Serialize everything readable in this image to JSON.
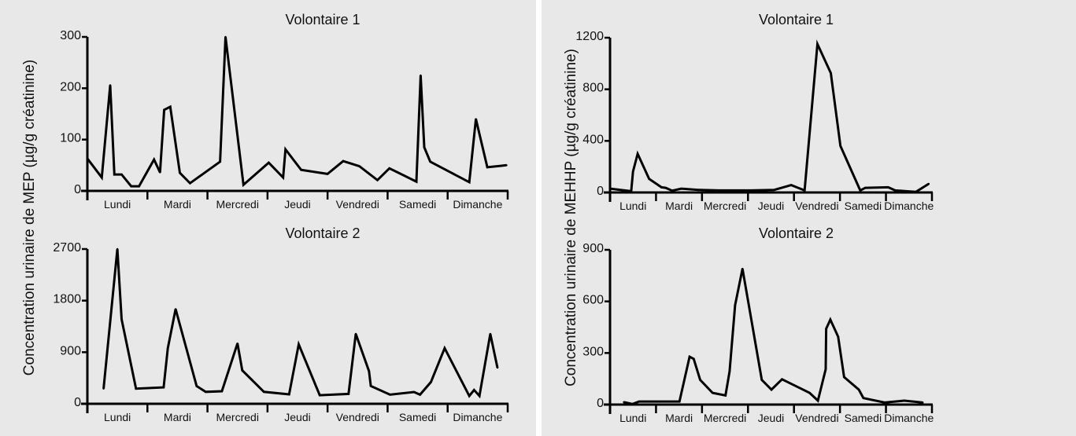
{
  "chart_data": [
    {
      "type": "line",
      "panel": "left",
      "title": "Volontaire 1",
      "ylabel": "Concentration urinaire de MEP (µg/g créatinine)",
      "categories": [
        "Lundi",
        "Mardi",
        "Mercredi",
        "Jeudi",
        "Vendredi",
        "Samedi",
        "Dimanche"
      ],
      "yticks": [
        0,
        100,
        200,
        300
      ],
      "ylim": [
        0,
        300
      ],
      "xlim": [
        0,
        7
      ],
      "x": [
        0,
        0.24,
        0.38,
        0.45,
        0.57,
        0.73,
        0.86,
        1.11,
        1.21,
        1.28,
        1.38,
        1.54,
        1.71,
        2.21,
        2.3,
        2.6,
        3.02,
        3.26,
        3.3,
        3.56,
        4.0,
        4.26,
        4.53,
        4.83,
        5.03,
        5.48,
        5.55,
        5.61,
        5.71,
        6.36,
        6.47,
        6.66,
        6.98
      ],
      "y": [
        63,
        26,
        206,
        32,
        32,
        9,
        9,
        61,
        36,
        158,
        164,
        35,
        15,
        57,
        300,
        12,
        55,
        26,
        81,
        41,
        33,
        58,
        48,
        21,
        44,
        18,
        225,
        85,
        57,
        17,
        140,
        46,
        50
      ]
    },
    {
      "type": "line",
      "panel": "left",
      "title": "Volontaire 2",
      "ylabel": "Concentration urinaire de MEP (µg/g créatinine)",
      "categories": [
        "Lundi",
        "Mardi",
        "Mercredi",
        "Jeudi",
        "Vendredi",
        "Samedi",
        "Dimanche"
      ],
      "yticks": [
        0,
        900,
        1800,
        2700
      ],
      "ylim": [
        0,
        2700
      ],
      "xlim": [
        0,
        7
      ],
      "x": [
        0.27,
        0.5,
        0.57,
        0.81,
        1.27,
        1.34,
        1.47,
        1.82,
        1.97,
        2.24,
        2.5,
        2.58,
        2.94,
        3.36,
        3.52,
        3.87,
        4.35,
        4.47,
        4.69,
        4.72,
        5.04,
        5.44,
        5.54,
        5.72,
        5.95,
        6.36,
        6.44,
        6.53,
        6.71,
        6.83
      ],
      "y": [
        264,
        2700,
        1475,
        264,
        287,
        970,
        1653,
        310,
        209,
        219,
        1052,
        583,
        209,
        164,
        1038,
        150,
        173,
        1220,
        569,
        310,
        159,
        205,
        159,
        378,
        970,
        137,
        241,
        137,
        1220,
        628
      ]
    },
    {
      "type": "line",
      "panel": "right",
      "title": "Volontaire 1",
      "ylabel": "Concentration urinaire de MEHHP (µg/g créatinine)",
      "categories": [
        "Lundi",
        "Mardi",
        "Mercredi",
        "Jeudi",
        "Vendredi",
        "Samedi",
        "Dimanche"
      ],
      "yticks": [
        0,
        400,
        800,
        1200
      ],
      "ylim": [
        0,
        1200
      ],
      "xlim": [
        0,
        7
      ],
      "x": [
        0,
        0.46,
        0.5,
        0.6,
        0.85,
        1.12,
        1.21,
        1.35,
        1.55,
        1.92,
        2.37,
        3.06,
        3.57,
        3.94,
        4.23,
        4.51,
        4.8,
        5.01,
        5.44,
        5.55,
        6.05,
        6.2,
        6.65,
        6.93
      ],
      "y": [
        30,
        10,
        162,
        300,
        105,
        40,
        36,
        14,
        30,
        20,
        16,
        16,
        20,
        57,
        16,
        1151,
        926,
        361,
        16,
        36,
        40,
        16,
        4,
        67
      ]
    },
    {
      "type": "line",
      "panel": "right",
      "title": "Volontaire 2",
      "ylabel": "Concentration urinaire de MEHHP (µg/g créatinine)",
      "categories": [
        "Lundi",
        "Mardi",
        "Mercredi",
        "Jeudi",
        "Vendredi",
        "Samedi",
        "Dimanche"
      ],
      "yticks": [
        0,
        300,
        600,
        900
      ],
      "ylim": [
        0,
        900
      ],
      "xlim": [
        0,
        7
      ],
      "x": [
        0.3,
        0.49,
        0.63,
        1.51,
        1.73,
        1.82,
        1.96,
        2.23,
        2.51,
        2.6,
        2.72,
        2.88,
        3.3,
        3.51,
        3.74,
        4.34,
        4.52,
        4.69,
        4.7,
        4.79,
        4.96,
        5.09,
        5.41,
        5.51,
        5.97,
        6.4,
        6.8
      ],
      "y": [
        14,
        3,
        18,
        18,
        278,
        266,
        144,
        68,
        53,
        193,
        578,
        790,
        144,
        87,
        147,
        68,
        23,
        205,
        441,
        494,
        395,
        160,
        87,
        38,
        12,
        23,
        12
      ]
    }
  ]
}
